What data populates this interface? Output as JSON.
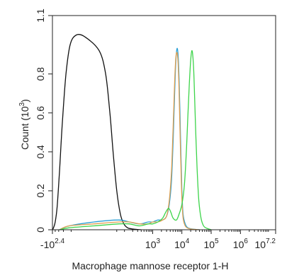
{
  "chart_data": {
    "type": "line",
    "xlabel": "Macrophage mannose receptor 1-H",
    "ylabel": "Count (10^3)",
    "ylabel_parts": {
      "base": "Count (10",
      "exp": "3",
      "close": ")"
    },
    "x_scale": "biexponential",
    "xlim": [
      -251.2,
      15848932
    ],
    "ylim": [
      0,
      1.1
    ],
    "x_ticks": [
      {
        "base": "-10",
        "exp": "2.4",
        "value": -251.2
      },
      {
        "base": "10",
        "exp": "3",
        "value": 1000
      },
      {
        "base": "10",
        "exp": "4",
        "value": 10000
      },
      {
        "base": "10",
        "exp": "5",
        "value": 100000
      },
      {
        "base": "10",
        "exp": "6",
        "value": 1000000
      },
      {
        "base": "10",
        "exp": "7.2",
        "value": 15848932
      }
    ],
    "y_ticks": [
      "0",
      "0.2",
      "0.4",
      "0.6",
      "0.8",
      "1.1"
    ],
    "y_tick_values": [
      0,
      0.2,
      0.4,
      0.6,
      0.8,
      1.1
    ],
    "grid": false,
    "legend": "none",
    "series": [
      {
        "color": "#111111",
        "x": [
          -251,
          -230,
          -200,
          -170,
          -140,
          -110,
          -80,
          -55,
          -30,
          -10,
          5,
          15,
          25,
          35,
          50,
          70,
          95,
          130,
          180,
          260,
          400
        ],
        "y": [
          0,
          0.01,
          0.04,
          0.12,
          0.3,
          0.55,
          0.8,
          0.95,
          1.0,
          0.99,
          0.92,
          0.8,
          0.6,
          0.4,
          0.2,
          0.08,
          0.03,
          0.01,
          0.005,
          0.002,
          0
        ]
      },
      {
        "color": "#2a9fd6",
        "x": [
          -140,
          -60,
          0,
          60,
          150,
          350,
          700,
          1000,
          1500,
          2200,
          3000,
          3700,
          4400,
          5000,
          5600,
          6200,
          6800,
          7400,
          8000,
          8600,
          9300,
          10000,
          11000,
          13000,
          16000,
          22000,
          40000
        ],
        "y": [
          0,
          0.02,
          0.04,
          0.05,
          0.04,
          0.03,
          0.04,
          0.04,
          0.05,
          0.05,
          0.07,
          0.13,
          0.25,
          0.45,
          0.68,
          0.86,
          0.93,
          0.9,
          0.78,
          0.6,
          0.38,
          0.2,
          0.08,
          0.03,
          0.01,
          0.004,
          0
        ]
      },
      {
        "color": "#e0a050",
        "x": [
          -140,
          -60,
          0,
          60,
          150,
          350,
          700,
          1000,
          1500,
          2200,
          3000,
          3700,
          4400,
          5000,
          5600,
          6200,
          6800,
          7400,
          8000,
          8600,
          9300,
          10000,
          11000,
          13000,
          16000,
          22000,
          40000
        ],
        "y": [
          0,
          0.02,
          0.03,
          0.04,
          0.04,
          0.03,
          0.03,
          0.04,
          0.04,
          0.05,
          0.07,
          0.15,
          0.3,
          0.52,
          0.74,
          0.88,
          0.91,
          0.86,
          0.72,
          0.52,
          0.32,
          0.16,
          0.06,
          0.02,
          0.008,
          0.003,
          0
        ]
      },
      {
        "color": "#3dd44a",
        "x": [
          -140,
          -60,
          0,
          60,
          150,
          350,
          700,
          1000,
          1500,
          2200,
          2800,
          3500,
          4200,
          5000,
          6500,
          8000,
          10000,
          12000,
          14000,
          16000,
          18000,
          20000,
          22000,
          24000,
          26000,
          29000,
          33000,
          38000,
          45000,
          55000,
          70000,
          100000
        ],
        "y": [
          0,
          0.01,
          0.02,
          0.03,
          0.03,
          0.02,
          0.03,
          0.03,
          0.04,
          0.06,
          0.09,
          0.11,
          0.09,
          0.06,
          0.05,
          0.08,
          0.13,
          0.22,
          0.38,
          0.58,
          0.75,
          0.87,
          0.92,
          0.88,
          0.78,
          0.55,
          0.32,
          0.15,
          0.06,
          0.02,
          0.008,
          0
        ]
      }
    ]
  }
}
